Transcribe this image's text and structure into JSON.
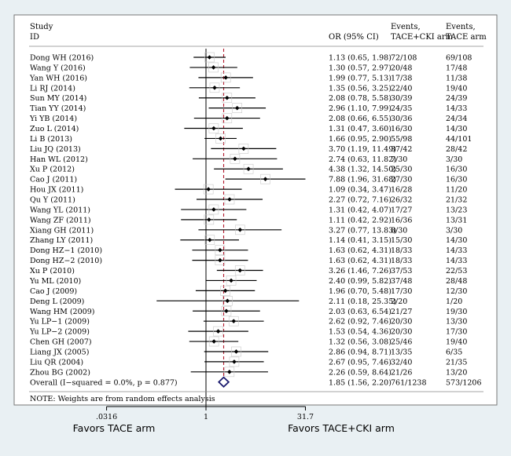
{
  "chart_data": {
    "type": "forest",
    "scale": "log",
    "x_ticks": [
      ".0316",
      "1",
      "31.7"
    ],
    "x_tick_values": [
      0.0316,
      1,
      31.7
    ],
    "xlabel_left": "Favors TACE arm",
    "xlabel_right": "Favors TACE+CKI arm",
    "headers": {
      "study_l1": "Study",
      "study_l2": "ID",
      "or": "OR (95% CI)",
      "events1_l1": "Events,",
      "events1_l2": "TACE+CKI arm",
      "events2_l1": "Events,",
      "events2_l2": "TACE arm"
    },
    "studies": [
      {
        "study": "Dong WH (2016)",
        "or": 1.13,
        "lo": 0.65,
        "hi": 1.98,
        "ci": "1.13 (0.65, 1.98)",
        "ev1": "72/108",
        "ev2": "69/108"
      },
      {
        "study": "Wang Y (2016)",
        "or": 1.3,
        "lo": 0.57,
        "hi": 2.97,
        "ci": "1.30 (0.57, 2.97)",
        "ev1": "20/48",
        "ev2": "17/48"
      },
      {
        "study": "Yan WH (2016)",
        "or": 1.99,
        "lo": 0.77,
        "hi": 5.13,
        "ci": "1.99 (0.77, 5.13)",
        "ev1": "17/38",
        "ev2": "11/38"
      },
      {
        "study": "Li RJ (2014)",
        "or": 1.35,
        "lo": 0.56,
        "hi": 3.25,
        "ci": "1.35 (0.56, 3.25)",
        "ev1": "22/40",
        "ev2": "19/40"
      },
      {
        "study": "Sun MY (2014)",
        "or": 2.08,
        "lo": 0.78,
        "hi": 5.58,
        "ci": "2.08 (0.78, 5.58)",
        "ev1": "30/39",
        "ev2": "24/39"
      },
      {
        "study": "Tian YY (2014)",
        "or": 2.96,
        "lo": 1.1,
        "hi": 7.99,
        "ci": "2.96 (1.10, 7.99)",
        "ev1": "24/35",
        "ev2": "14/33"
      },
      {
        "study": "Yi YB (2014)",
        "or": 2.08,
        "lo": 0.66,
        "hi": 6.55,
        "ci": "2.08 (0.66, 6.55)",
        "ev1": "30/36",
        "ev2": "24/34"
      },
      {
        "study": "Zuo L (2014)",
        "or": 1.31,
        "lo": 0.47,
        "hi": 3.6,
        "ci": "1.31 (0.47, 3.60)",
        "ev1": "16/30",
        "ev2": "14/30"
      },
      {
        "study": "Li B (2013)",
        "or": 1.66,
        "lo": 0.95,
        "hi": 2.9,
        "ci": "1.66 (0.95, 2.90)",
        "ev1": "55/98",
        "ev2": "44/101"
      },
      {
        "study": "Liu JQ (2013)",
        "or": 3.7,
        "lo": 1.19,
        "hi": 11.49,
        "ci": "3.70 (1.19, 11.49)",
        "ev1": "37/42",
        "ev2": "28/42"
      },
      {
        "study": "Han WL (2012)",
        "or": 2.74,
        "lo": 0.63,
        "hi": 11.82,
        "ci": "2.74 (0.63, 11.82)",
        "ev1": "7/30",
        "ev2": "3/30"
      },
      {
        "study": "Xu P (2012)",
        "or": 4.38,
        "lo": 1.32,
        "hi": 14.5,
        "ci": "4.38 (1.32, 14.50)",
        "ev1": "25/30",
        "ev2": "16/30"
      },
      {
        "study": "Cao J (2011)",
        "or": 7.88,
        "lo": 1.96,
        "hi": 31.68,
        "ci": "7.88 (1.96, 31.68)",
        "ev1": "27/30",
        "ev2": "16/30"
      },
      {
        "study": "Hou JX (2011)",
        "or": 1.09,
        "lo": 0.34,
        "hi": 3.47,
        "ci": "1.09 (0.34, 3.47)",
        "ev1": "16/28",
        "ev2": "11/20"
      },
      {
        "study": "Qu Y (2011)",
        "or": 2.27,
        "lo": 0.72,
        "hi": 7.16,
        "ci": "2.27 (0.72, 7.16)",
        "ev1": "26/32",
        "ev2": "21/32"
      },
      {
        "study": "Wang YL (2011)",
        "or": 1.31,
        "lo": 0.42,
        "hi": 4.07,
        "ci": "1.31 (0.42, 4.07)",
        "ev1": "17/27",
        "ev2": "13/23"
      },
      {
        "study": "Wang ZF (2011)",
        "or": 1.11,
        "lo": 0.42,
        "hi": 2.92,
        "ci": "1.11 (0.42, 2.92)",
        "ev1": "16/36",
        "ev2": "13/31"
      },
      {
        "study": "Xiang GH (2011)",
        "or": 3.27,
        "lo": 0.77,
        "hi": 13.83,
        "ci": "3.27 (0.77, 13.83)",
        "ev1": "8/30",
        "ev2": "3/30"
      },
      {
        "study": "Zhang LY (2011)",
        "or": 1.14,
        "lo": 0.41,
        "hi": 3.15,
        "ci": "1.14 (0.41, 3.15)",
        "ev1": "15/30",
        "ev2": "14/30"
      },
      {
        "study": "Dong HZ−1 (2010)",
        "or": 1.63,
        "lo": 0.62,
        "hi": 4.31,
        "ci": "1.63 (0.62, 4.31)",
        "ev1": "18/33",
        "ev2": "14/33"
      },
      {
        "study": "Dong HZ−2 (2010)",
        "or": 1.63,
        "lo": 0.62,
        "hi": 4.31,
        "ci": "1.63 (0.62, 4.31)",
        "ev1": "18/33",
        "ev2": "14/33"
      },
      {
        "study": "Xu P (2010)",
        "or": 3.26,
        "lo": 1.46,
        "hi": 7.26,
        "ci": "3.26 (1.46, 7.26)",
        "ev1": "37/53",
        "ev2": "22/53"
      },
      {
        "study": "Yu ML (2010)",
        "or": 2.4,
        "lo": 0.99,
        "hi": 5.82,
        "ci": "2.40 (0.99, 5.82)",
        "ev1": "37/48",
        "ev2": "28/48"
      },
      {
        "study": "Cao J (2009)",
        "or": 1.96,
        "lo": 0.7,
        "hi": 5.48,
        "ci": "1.96 (0.70, 5.48)",
        "ev1": "17/30",
        "ev2": "12/30"
      },
      {
        "study": "Deng L (2009)",
        "or": 2.11,
        "lo": 0.18,
        "hi": 25.35,
        "ci": "2.11 (0.18, 25.35)",
        "ev1": "2/20",
        "ev2": "1/20"
      },
      {
        "study": "Wang HM (2009)",
        "or": 2.03,
        "lo": 0.63,
        "hi": 6.54,
        "ci": "2.03 (0.63, 6.54)",
        "ev1": "21/27",
        "ev2": "19/30"
      },
      {
        "study": "Yu LP−1 (2009)",
        "or": 2.62,
        "lo": 0.92,
        "hi": 7.46,
        "ci": "2.62 (0.92, 7.46)",
        "ev1": "20/30",
        "ev2": "13/30"
      },
      {
        "study": "Yu LP−2 (2009)",
        "or": 1.53,
        "lo": 0.54,
        "hi": 4.36,
        "ci": "1.53 (0.54, 4.36)",
        "ev1": "20/30",
        "ev2": "17/30"
      },
      {
        "study": "Chen GH (2007)",
        "or": 1.32,
        "lo": 0.56,
        "hi": 3.08,
        "ci": "1.32 (0.56, 3.08)",
        "ev1": "25/46",
        "ev2": "19/40"
      },
      {
        "study": "Liang JX (2005)",
        "or": 2.86,
        "lo": 0.94,
        "hi": 8.71,
        "ci": "2.86 (0.94, 8.71)",
        "ev1": "13/35",
        "ev2": "6/35"
      },
      {
        "study": "Liu QR (2004)",
        "or": 2.67,
        "lo": 0.95,
        "hi": 7.46,
        "ci": "2.67 (0.95, 7.46)",
        "ev1": "32/40",
        "ev2": "21/35"
      },
      {
        "study": "Zhou BG (2002)",
        "or": 2.26,
        "lo": 0.59,
        "hi": 8.64,
        "ci": "2.26 (0.59, 8.64)",
        "ev1": "21/26",
        "ev2": "13/20"
      }
    ],
    "overall": {
      "label": "Overall  (I−squared = 0.0%, p = 0.877)",
      "or": 1.85,
      "lo": 1.56,
      "hi": 2.2,
      "ci": "1.85 (1.56, 2.20)",
      "ev1": "761/1238",
      "ev2": "573/1206"
    },
    "note": "NOTE: Weights are from random effects analysis",
    "colors": {
      "background": "#e9f0f3",
      "panel": "#ffffff",
      "ci_line": "#000000",
      "point": "#000000",
      "dashed_line": "#b2182b",
      "diamond": "#1a1a6e"
    }
  }
}
